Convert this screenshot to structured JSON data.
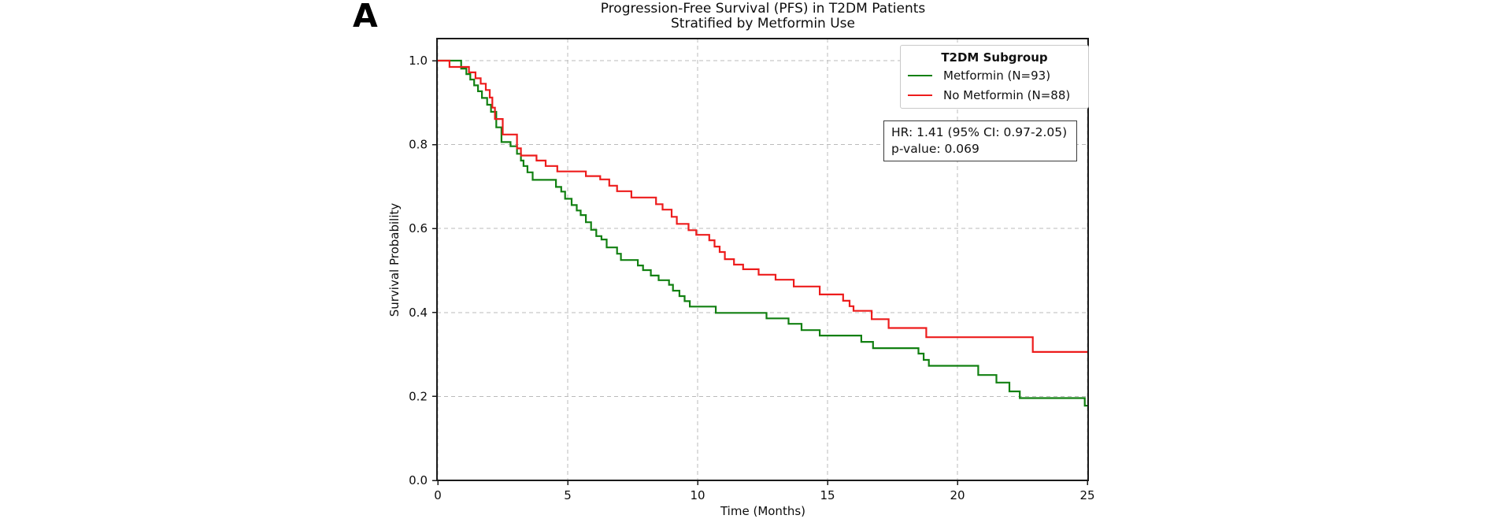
{
  "panel_label": "A",
  "title": {
    "line1": "Progression-Free Survival (PFS) in T2DM Patients",
    "line2": "Stratified by Metformin Use"
  },
  "axes": {
    "xlabel": "Time (Months)",
    "ylabel": "Survival Probability"
  },
  "legend": {
    "title": "T2DM Subgroup",
    "items": [
      {
        "label": "Metformin (N=93)",
        "color": "#128012"
      },
      {
        "label": "No Metformin (N=88)",
        "color": "#ed1c1c"
      }
    ]
  },
  "stats_box": {
    "line1": "HR: 1.41 (95% CI: 0.97-2.05)",
    "line2": "p-value: 0.069"
  },
  "chart_data": {
    "type": "line",
    "subtype": "kaplan-meier-step",
    "title": "Progression-Free Survival (PFS) in T2DM Patients Stratified by Metformin Use",
    "xlabel": "Time (Months)",
    "ylabel": "Survival Probability",
    "xlim": [
      0,
      25
    ],
    "ylim": [
      0,
      1.05
    ],
    "grid": true,
    "grid_color": "#bbbbbb",
    "frame_color": "#1a1a1a",
    "legend_position": "upper right",
    "xticks": {
      "values": [
        0,
        5,
        10,
        15,
        20,
        25
      ],
      "labels": [
        "0",
        "5",
        "10",
        "15",
        "20",
        "25"
      ]
    },
    "yticks": {
      "values": [
        0,
        0.2,
        0.4,
        0.6,
        0.8,
        1.0
      ],
      "labels": [
        "0.0",
        "0.2",
        "0.4",
        "0.6",
        "0.8",
        "1.0"
      ]
    },
    "series": [
      {
        "name": "Metformin (N=93)",
        "color": "#128012",
        "points": [
          [
            0,
            1.0
          ],
          [
            0.9,
            0.981
          ],
          [
            1.1,
            0.968
          ],
          [
            1.25,
            0.955
          ],
          [
            1.4,
            0.941
          ],
          [
            1.55,
            0.927
          ],
          [
            1.7,
            0.911
          ],
          [
            1.9,
            0.895
          ],
          [
            2.05,
            0.878
          ],
          [
            2.25,
            0.841
          ],
          [
            2.45,
            0.806
          ],
          [
            2.8,
            0.796
          ],
          [
            3.05,
            0.778
          ],
          [
            3.2,
            0.762
          ],
          [
            3.3,
            0.749
          ],
          [
            3.45,
            0.734
          ],
          [
            3.65,
            0.716
          ],
          [
            4.55,
            0.699
          ],
          [
            4.75,
            0.688
          ],
          [
            4.9,
            0.671
          ],
          [
            5.15,
            0.656
          ],
          [
            5.35,
            0.643
          ],
          [
            5.5,
            0.632
          ],
          [
            5.7,
            0.615
          ],
          [
            5.9,
            0.597
          ],
          [
            6.1,
            0.582
          ],
          [
            6.3,
            0.574
          ],
          [
            6.5,
            0.555
          ],
          [
            6.9,
            0.54
          ],
          [
            7.05,
            0.525
          ],
          [
            7.7,
            0.512
          ],
          [
            7.9,
            0.501
          ],
          [
            8.2,
            0.488
          ],
          [
            8.5,
            0.477
          ],
          [
            8.9,
            0.466
          ],
          [
            9.05,
            0.452
          ],
          [
            9.3,
            0.439
          ],
          [
            9.5,
            0.427
          ],
          [
            9.7,
            0.414
          ],
          [
            10.7,
            0.399
          ],
          [
            12.65,
            0.386
          ],
          [
            13.5,
            0.373
          ],
          [
            14.0,
            0.358
          ],
          [
            14.7,
            0.345
          ],
          [
            16.3,
            0.33
          ],
          [
            16.75,
            0.315
          ],
          [
            18.5,
            0.302
          ],
          [
            18.7,
            0.287
          ],
          [
            18.9,
            0.273
          ],
          [
            20.8,
            0.251
          ],
          [
            21.5,
            0.233
          ],
          [
            22.0,
            0.212
          ],
          [
            22.4,
            0.196
          ],
          [
            24.9,
            0.178
          ],
          [
            25,
            0.178
          ]
        ]
      },
      {
        "name": "No Metformin (N=88)",
        "color": "#ed1c1c",
        "points": [
          [
            0,
            1.0
          ],
          [
            0.45,
            0.985
          ],
          [
            1.2,
            0.972
          ],
          [
            1.45,
            0.958
          ],
          [
            1.65,
            0.945
          ],
          [
            1.85,
            0.93
          ],
          [
            2.0,
            0.912
          ],
          [
            2.1,
            0.888
          ],
          [
            2.2,
            0.861
          ],
          [
            2.5,
            0.824
          ],
          [
            3.05,
            0.791
          ],
          [
            3.2,
            0.774
          ],
          [
            3.8,
            0.762
          ],
          [
            4.15,
            0.749
          ],
          [
            4.6,
            0.736
          ],
          [
            5.7,
            0.725
          ],
          [
            6.25,
            0.717
          ],
          [
            6.6,
            0.702
          ],
          [
            6.9,
            0.689
          ],
          [
            7.45,
            0.674
          ],
          [
            8.4,
            0.658
          ],
          [
            8.65,
            0.645
          ],
          [
            9.0,
            0.628
          ],
          [
            9.2,
            0.611
          ],
          [
            9.65,
            0.596
          ],
          [
            9.95,
            0.585
          ],
          [
            10.45,
            0.572
          ],
          [
            10.65,
            0.557
          ],
          [
            10.85,
            0.544
          ],
          [
            11.05,
            0.527
          ],
          [
            11.4,
            0.514
          ],
          [
            11.75,
            0.503
          ],
          [
            12.35,
            0.49
          ],
          [
            13.0,
            0.478
          ],
          [
            13.7,
            0.462
          ],
          [
            14.7,
            0.443
          ],
          [
            15.6,
            0.428
          ],
          [
            15.85,
            0.415
          ],
          [
            16.0,
            0.404
          ],
          [
            16.7,
            0.384
          ],
          [
            17.35,
            0.363
          ],
          [
            18.8,
            0.341
          ],
          [
            22.9,
            0.306
          ],
          [
            25,
            0.306
          ]
        ]
      }
    ],
    "annotation": {
      "lines": [
        "HR: 1.41 (95% CI: 0.97-2.05)",
        "p-value: 0.069"
      ]
    }
  }
}
